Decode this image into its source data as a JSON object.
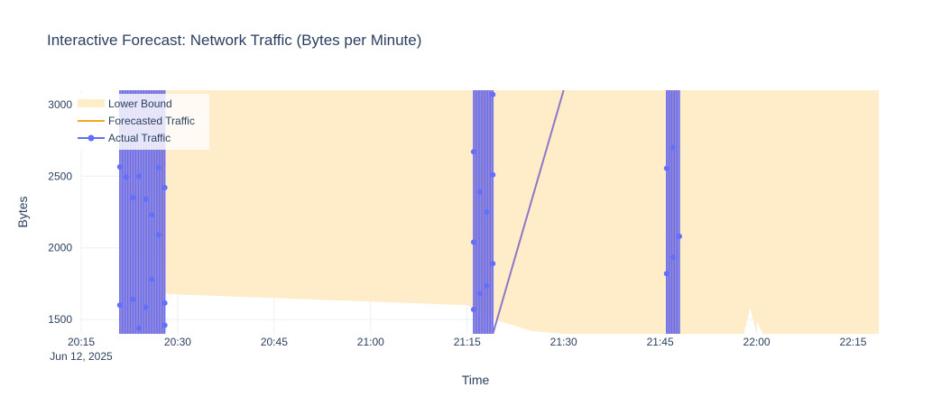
{
  "chart_data": {
    "type": "line",
    "title": "Interactive Forecast: Network Traffic (Bytes per Minute)",
    "xlabel": "Time",
    "ylabel": "Bytes",
    "x_date_label": "Jun 12, 2025",
    "x_tick_labels": [
      "20:15",
      "20:30",
      "20:45",
      "21:00",
      "21:15",
      "21:30",
      "21:45",
      "22:00",
      "22:15"
    ],
    "x_tick_minutes": [
      1215,
      1230,
      1245,
      1260,
      1275,
      1290,
      1305,
      1320,
      1335
    ],
    "xlim": [
      "20:15",
      "22:19"
    ],
    "ylim": [
      1400,
      3100
    ],
    "y_ticks": [
      1500,
      2000,
      2500,
      3000
    ],
    "grid": true,
    "legend_position": "top-left",
    "colors": {
      "actual": "#636efa",
      "forecast": "#f4a81d",
      "band": "#ffecc9",
      "overlap": "#8b78c8"
    },
    "series": [
      {
        "name": "Lower Bound",
        "kind": "area",
        "points": [
          {
            "t": "20:25",
            "v": 3100
          },
          {
            "t": "20:28",
            "v": 1680
          },
          {
            "t": "20:30",
            "v": 1675
          },
          {
            "t": "20:45",
            "v": 1650
          },
          {
            "t": "21:00",
            "v": 1625
          },
          {
            "t": "21:15",
            "v": 1600
          },
          {
            "t": "21:20",
            "v": 1490
          },
          {
            "t": "21:25",
            "v": 1420
          },
          {
            "t": "21:30",
            "v": 1400
          },
          {
            "t": "21:45",
            "v": 1400
          },
          {
            "t": "21:58",
            "v": 1400
          },
          {
            "t": "21:59",
            "v": 1580
          },
          {
            "t": "22:00",
            "v": 1400
          },
          {
            "t": "22:00",
            "v": 1490
          },
          {
            "t": "22:01",
            "v": 1400
          },
          {
            "t": "22:19",
            "v": 1400
          }
        ]
      },
      {
        "name": "Forecasted Traffic",
        "kind": "line",
        "points": [
          {
            "t": "21:19",
            "v": 1400
          },
          {
            "t": "21:30",
            "v": 3100
          }
        ]
      },
      {
        "name": "Actual Traffic",
        "kind": "line+markers",
        "bursts": [
          {
            "start": "20:21",
            "end": "20:28",
            "markers": [
              {
                "t": "20:21",
                "v": 2565
              },
              {
                "t": "20:21",
                "v": 1600
              },
              {
                "t": "20:22",
                "v": 2495
              },
              {
                "t": "20:23",
                "v": 1640
              },
              {
                "t": "20:23",
                "v": 2350
              },
              {
                "t": "20:24",
                "v": 1440
              },
              {
                "t": "20:24",
                "v": 2500
              },
              {
                "t": "20:25",
                "v": 1585
              },
              {
                "t": "20:25",
                "v": 2340
              },
              {
                "t": "20:26",
                "v": 1780
              },
              {
                "t": "20:26",
                "v": 2230
              },
              {
                "t": "20:27",
                "v": 2560
              },
              {
                "t": "20:27",
                "v": 2090
              },
              {
                "t": "20:28",
                "v": 1615
              },
              {
                "t": "20:28",
                "v": 1460
              },
              {
                "t": "20:28",
                "v": 2420
              }
            ]
          },
          {
            "start": "21:16",
            "end": "21:19",
            "markers": [
              {
                "t": "21:16",
                "v": 2040
              },
              {
                "t": "21:16",
                "v": 2670
              },
              {
                "t": "21:16",
                "v": 1570
              },
              {
                "t": "21:17",
                "v": 1680
              },
              {
                "t": "21:18",
                "v": 1735
              },
              {
                "t": "21:18",
                "v": 2250
              },
              {
                "t": "21:19",
                "v": 1890
              },
              {
                "t": "21:19",
                "v": 2510
              },
              {
                "t": "21:19",
                "v": 3070
              },
              {
                "t": "21:17",
                "v": 2390
              }
            ]
          },
          {
            "start": "21:46",
            "end": "21:48",
            "markers": [
              {
                "t": "21:46",
                "v": 2555
              },
              {
                "t": "21:46",
                "v": 1820
              },
              {
                "t": "21:47",
                "v": 2700
              },
              {
                "t": "21:47",
                "v": 1935
              },
              {
                "t": "21:48",
                "v": 2080
              }
            ]
          }
        ]
      }
    ]
  }
}
